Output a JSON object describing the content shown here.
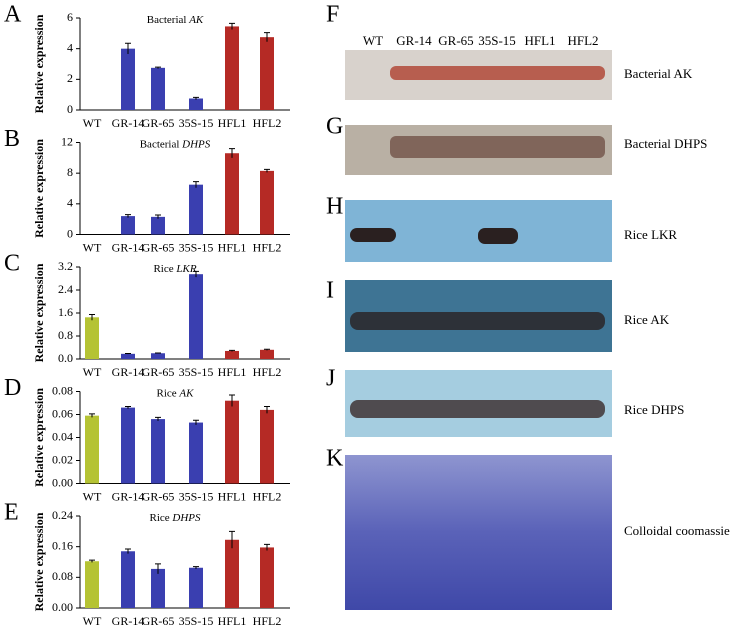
{
  "chart_data": [
    {
      "type": "bar",
      "label": "A",
      "title": "Bacterial",
      "title_gene": "AK",
      "ylabel": "Relative expression",
      "categories": [
        "WT",
        "GR-14",
        "GR-65",
        "35S-15",
        "HFL1",
        "HFL2"
      ],
      "values": [
        null,
        4.0,
        2.75,
        0.75,
        5.45,
        4.75
      ],
      "errors": [
        null,
        0.35,
        0.05,
        0.07,
        0.2,
        0.3
      ],
      "colors": [
        "#b5c334",
        "#3a3fb0",
        "#3a3fb0",
        "#3a3fb0",
        "#b52a25",
        "#b52a25"
      ],
      "ylim": [
        0,
        6
      ],
      "yticks": [
        0,
        2,
        4,
        6
      ]
    },
    {
      "type": "bar",
      "label": "B",
      "title": "Bacterial",
      "title_gene": "DHPS",
      "ylabel": "Relative expression",
      "categories": [
        "WT",
        "GR-14",
        "GR-65",
        "35S-15",
        "HFL1",
        "HFL2"
      ],
      "values": [
        null,
        2.4,
        2.3,
        6.5,
        10.6,
        8.3
      ],
      "errors": [
        null,
        0.2,
        0.25,
        0.4,
        0.6,
        0.2
      ],
      "colors": [
        "#b5c334",
        "#3a3fb0",
        "#3a3fb0",
        "#3a3fb0",
        "#b52a25",
        "#b52a25"
      ],
      "ylim": [
        0,
        12
      ],
      "yticks": [
        0,
        4,
        8,
        12
      ]
    },
    {
      "type": "bar",
      "label": "C",
      "title": "Rice",
      "title_gene": "LKR",
      "ylabel": "Relative expression",
      "categories": [
        "WT",
        "GR-14",
        "GR-65",
        "35S-15",
        "HFL1",
        "HFL2"
      ],
      "values": [
        1.45,
        0.18,
        0.2,
        2.95,
        0.28,
        0.32
      ],
      "errors": [
        0.1,
        0.01,
        0.01,
        0.1,
        0.02,
        0.02
      ],
      "colors": [
        "#b5c334",
        "#3a3fb0",
        "#3a3fb0",
        "#3a3fb0",
        "#b52a25",
        "#b52a25"
      ],
      "ylim": [
        0,
        3.2
      ],
      "yticks": [
        {
          "value": 0,
          "label": "0.0"
        },
        0.8,
        1.6,
        2.4,
        3.2
      ]
    },
    {
      "type": "bar",
      "label": "D",
      "title": "Rice",
      "title_gene": "AK",
      "ylabel": "Relative expression",
      "categories": [
        "WT",
        "GR-14",
        "GR-65",
        "35S-15",
        "HFL1",
        "HFL2"
      ],
      "values": [
        0.059,
        0.066,
        0.056,
        0.053,
        0.072,
        0.064
      ],
      "errors": [
        0.0015,
        0.001,
        0.0015,
        0.002,
        0.005,
        0.003
      ],
      "colors": [
        "#b5c334",
        "#3a3fb0",
        "#3a3fb0",
        "#3a3fb0",
        "#b52a25",
        "#b52a25"
      ],
      "ylim": [
        0,
        0.08
      ],
      "yticks": [
        {
          "value": 0,
          "label": "0.00"
        },
        {
          "value": 0.02,
          "label": "0.02"
        },
        {
          "value": 0.04,
          "label": "0.04"
        },
        {
          "value": 0.06,
          "label": "0.06"
        },
        {
          "value": 0.08,
          "label": "0.08"
        }
      ]
    },
    {
      "type": "bar",
      "label": "E",
      "title": "Rice",
      "title_gene": "DHPS",
      "ylabel": "Relative expression",
      "categories": [
        "WT",
        "GR-14",
        "GR-65",
        "35S-15",
        "HFL1",
        "HFL2"
      ],
      "values": [
        0.122,
        0.148,
        0.102,
        0.105,
        0.178,
        0.158
      ],
      "errors": [
        0.003,
        0.006,
        0.013,
        0.003,
        0.022,
        0.008
      ],
      "colors": [
        "#b5c334",
        "#3a3fb0",
        "#3a3fb0",
        "#3a3fb0",
        "#b52a25",
        "#b52a25"
      ],
      "ylim": [
        0,
        0.24
      ],
      "yticks": [
        {
          "value": 0,
          "label": "0.00"
        },
        {
          "value": 0.08,
          "label": "0.08"
        },
        {
          "value": 0.16,
          "label": "0.16"
        },
        {
          "value": 0.24,
          "label": "0.24"
        }
      ]
    }
  ],
  "blots": {
    "lanes": [
      "WT",
      "GR-14",
      "GR-65",
      "35S-15",
      "HFL1",
      "HFL2"
    ],
    "panels": [
      {
        "label": "F",
        "name": "Bacterial AK"
      },
      {
        "label": "G",
        "name": "Bacterial DHPS"
      },
      {
        "label": "H",
        "name": "Rice LKR"
      },
      {
        "label": "I",
        "name": "Rice AK"
      },
      {
        "label": "J",
        "name": "Rice DHPS"
      },
      {
        "label": "K",
        "name": "Colloidal coomassie"
      }
    ]
  }
}
